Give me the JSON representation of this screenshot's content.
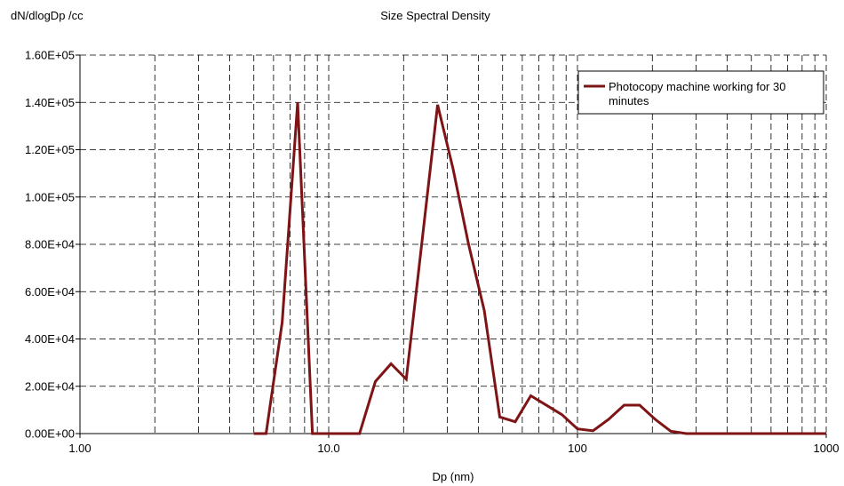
{
  "chart_data": {
    "type": "line",
    "title": "Size Spectral Density",
    "ylabel": "dN/dlogDp /cc",
    "xlabel": "Dp (nm)",
    "x_scale": "log",
    "xlim": [
      1,
      1000
    ],
    "ylim": [
      0,
      160000
    ],
    "grid": true,
    "legend_position": "top-right",
    "x_ticks": [
      {
        "value": 1,
        "label": "1.00"
      },
      {
        "value": 10,
        "label": "10.0"
      },
      {
        "value": 100,
        "label": "100"
      },
      {
        "value": 1000,
        "label": "1000"
      }
    ],
    "y_ticks": [
      {
        "value": 0,
        "label": "0.00E+00"
      },
      {
        "value": 20000,
        "label": "2.00E+04"
      },
      {
        "value": 40000,
        "label": "4.00E+04"
      },
      {
        "value": 60000,
        "label": "6.00E+04"
      },
      {
        "value": 80000,
        "label": "8.00E+04"
      },
      {
        "value": 100000,
        "label": "1.00E+05"
      },
      {
        "value": 120000,
        "label": "1.20E+05"
      },
      {
        "value": 140000,
        "label": "1.40E+05"
      },
      {
        "value": 160000,
        "label": "1.60E+05"
      }
    ],
    "series": [
      {
        "name": "Photocopy machine working for 30 minutes",
        "color": "#7f1416",
        "x": [
          5.0,
          5.6,
          6.5,
          7.5,
          8.6,
          9.8,
          11.5,
          13.3,
          15.4,
          17.8,
          20.5,
          27.4,
          31.6,
          36.5,
          42.2,
          48.7,
          56.2,
          64.9,
          75.0,
          86.6,
          100,
          115.5,
          133.4,
          154.0,
          177.8,
          205.4,
          237.1,
          273.8,
          316.2,
          400,
          500,
          700,
          1000
        ],
        "y": [
          0,
          0,
          47000,
          140000,
          0,
          0,
          0,
          0,
          22000,
          29500,
          23000,
          139000,
          112000,
          80000,
          52000,
          7000,
          5000,
          16000,
          12000,
          8000,
          2000,
          1200,
          6000,
          12000,
          12000,
          6000,
          1000,
          0,
          0,
          0,
          0,
          0,
          0
        ]
      }
    ]
  }
}
